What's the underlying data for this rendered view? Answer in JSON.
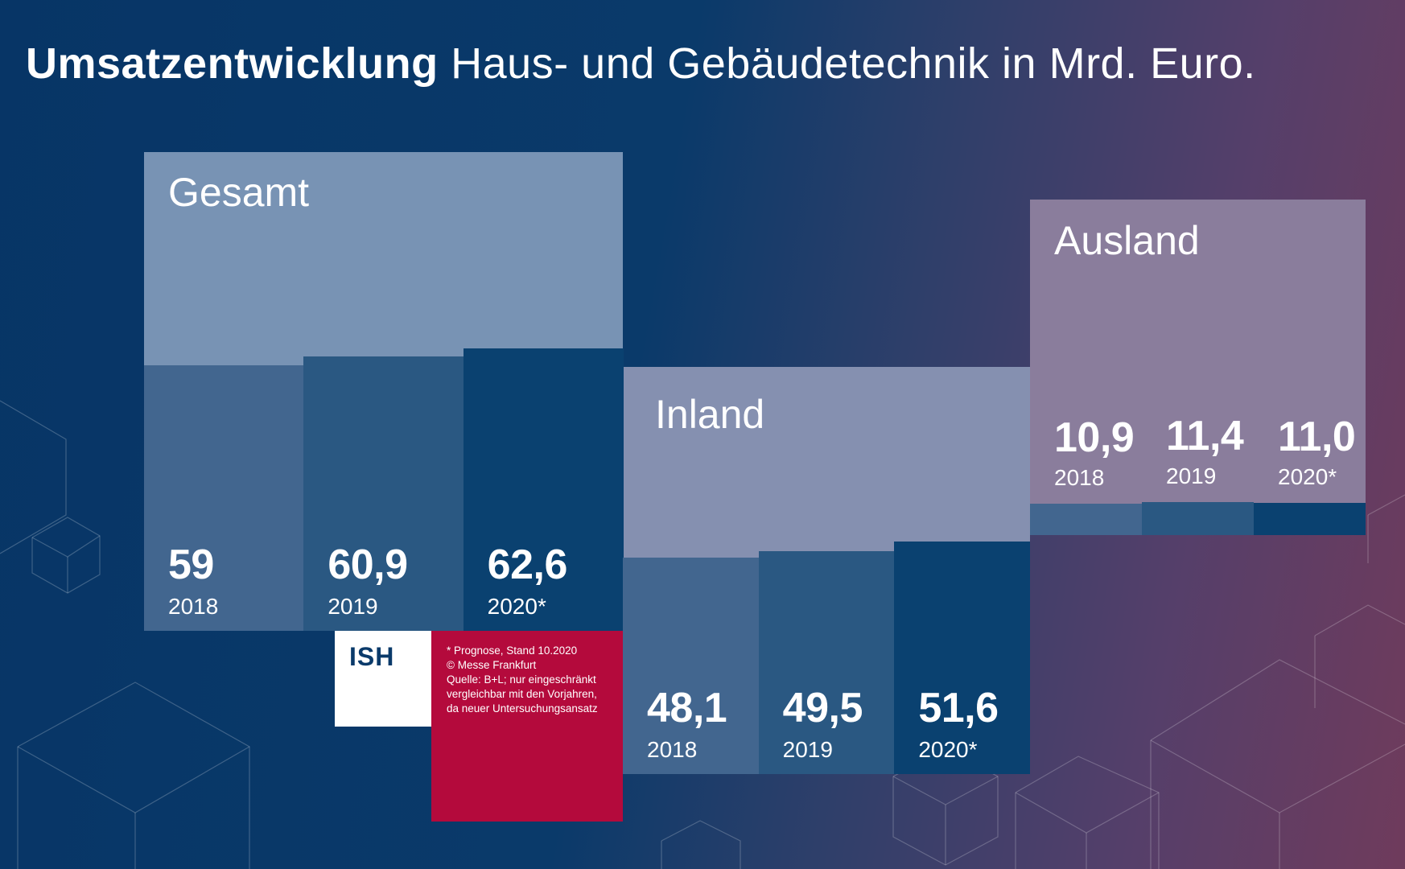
{
  "title": {
    "bold": "Umsatzentwicklung",
    "rest": "Haus- und Gebäudetechnik in Mrd. Euro."
  },
  "colors": {
    "panel_gesamt": "#7893b4",
    "panel_inland": "#8590b0",
    "panel_ausland": "#8a7d9c",
    "bar_2018": "#42668f",
    "bar_2019": "#2a5882",
    "bar_2020": "#0a4170",
    "note_box": "#b40a3c",
    "logo_box": "#ffffff"
  },
  "logo": {
    "text": "ISH"
  },
  "footnote": [
    "* Prognose, Stand 10.2020",
    "© Messe Frankfurt",
    "Quelle: B+L; nur eingeschränkt",
    "vergleichbar mit den Vorjahren,",
    "da neuer Untersuchungsansatz"
  ],
  "chart_data": [
    {
      "type": "bar",
      "title": "Gesamt",
      "categories": [
        "2018",
        "2019",
        "2020*"
      ],
      "values": [
        59,
        60.9,
        62.6
      ],
      "value_labels": [
        "59",
        "60,9",
        "62,6"
      ]
    },
    {
      "type": "bar",
      "title": "Inland",
      "categories": [
        "2018",
        "2019",
        "2020*"
      ],
      "values": [
        48.1,
        49.5,
        51.6
      ],
      "value_labels": [
        "48,1",
        "49,5",
        "51,6"
      ]
    },
    {
      "type": "bar",
      "title": "Ausland",
      "categories": [
        "2018",
        "2019",
        "2020*"
      ],
      "values": [
        10.9,
        11.4,
        11.0
      ],
      "value_labels": [
        "10,9",
        "11,4",
        "11,0"
      ]
    }
  ]
}
